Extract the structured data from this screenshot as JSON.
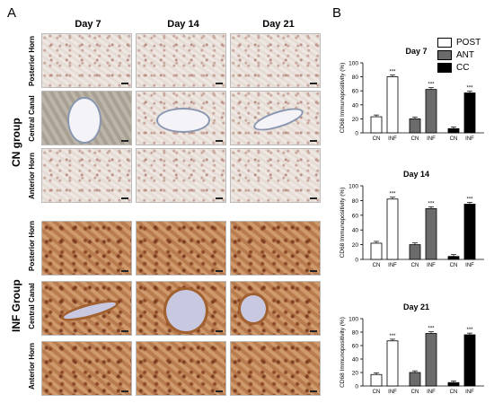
{
  "panel_a": {
    "letter": "A",
    "columns": [
      "Day 7",
      "Day 14",
      "Day 21"
    ],
    "groups": [
      {
        "label": "CN group",
        "rows": [
          "Posterior Horn",
          "Central Canal",
          "Anterior Horn"
        ]
      },
      {
        "label": "INF Group",
        "rows": [
          "Posterior Horn",
          "Central Canal",
          "Anterior Horn"
        ]
      }
    ]
  },
  "panel_b": {
    "letter": "B"
  },
  "legend": [
    {
      "label": "POST",
      "color": "#ffffff"
    },
    {
      "label": "ANT",
      "color": "#6b6b6b"
    },
    {
      "label": "CC",
      "color": "#000000"
    }
  ],
  "chart_data": [
    {
      "type": "bar",
      "title": "Day 7",
      "ylabel": "CD68 Immunopositivity (%)",
      "ylim": [
        0,
        100
      ],
      "yticks": [
        0,
        20,
        40,
        60,
        80,
        100
      ],
      "categories": [
        "CN",
        "INF",
        "CN",
        "INF",
        "CN",
        "INF"
      ],
      "groups": [
        "POST",
        "POST",
        "ANT",
        "ANT",
        "CC",
        "CC"
      ],
      "values": [
        23,
        80,
        20,
        62,
        6,
        57
      ],
      "significance": [
        "",
        "***",
        "",
        "***",
        "",
        "***"
      ]
    },
    {
      "type": "bar",
      "title": "Day 14",
      "ylabel": "CD68 Immunopositivity (%)",
      "ylim": [
        0,
        100
      ],
      "yticks": [
        0,
        20,
        40,
        60,
        80,
        100
      ],
      "categories": [
        "CN",
        "INF",
        "CN",
        "INF",
        "CN",
        "INF"
      ],
      "groups": [
        "POST",
        "POST",
        "ANT",
        "ANT",
        "CC",
        "CC"
      ],
      "values": [
        22,
        82,
        20,
        69,
        4,
        75
      ],
      "significance": [
        "",
        "***",
        "",
        "***",
        "",
        "***"
      ]
    },
    {
      "type": "bar",
      "title": "Day 21",
      "ylabel": "CD68 Immunopositivity (%)",
      "ylim": [
        0,
        100
      ],
      "yticks": [
        0,
        20,
        40,
        60,
        80,
        100
      ],
      "categories": [
        "CN",
        "INF",
        "CN",
        "INF",
        "CN",
        "INF"
      ],
      "groups": [
        "POST",
        "POST",
        "ANT",
        "ANT",
        "CC",
        "CC"
      ],
      "values": [
        17,
        67,
        20,
        78,
        5,
        76
      ],
      "significance": [
        "",
        "***",
        "",
        "***",
        "",
        "***"
      ]
    }
  ]
}
